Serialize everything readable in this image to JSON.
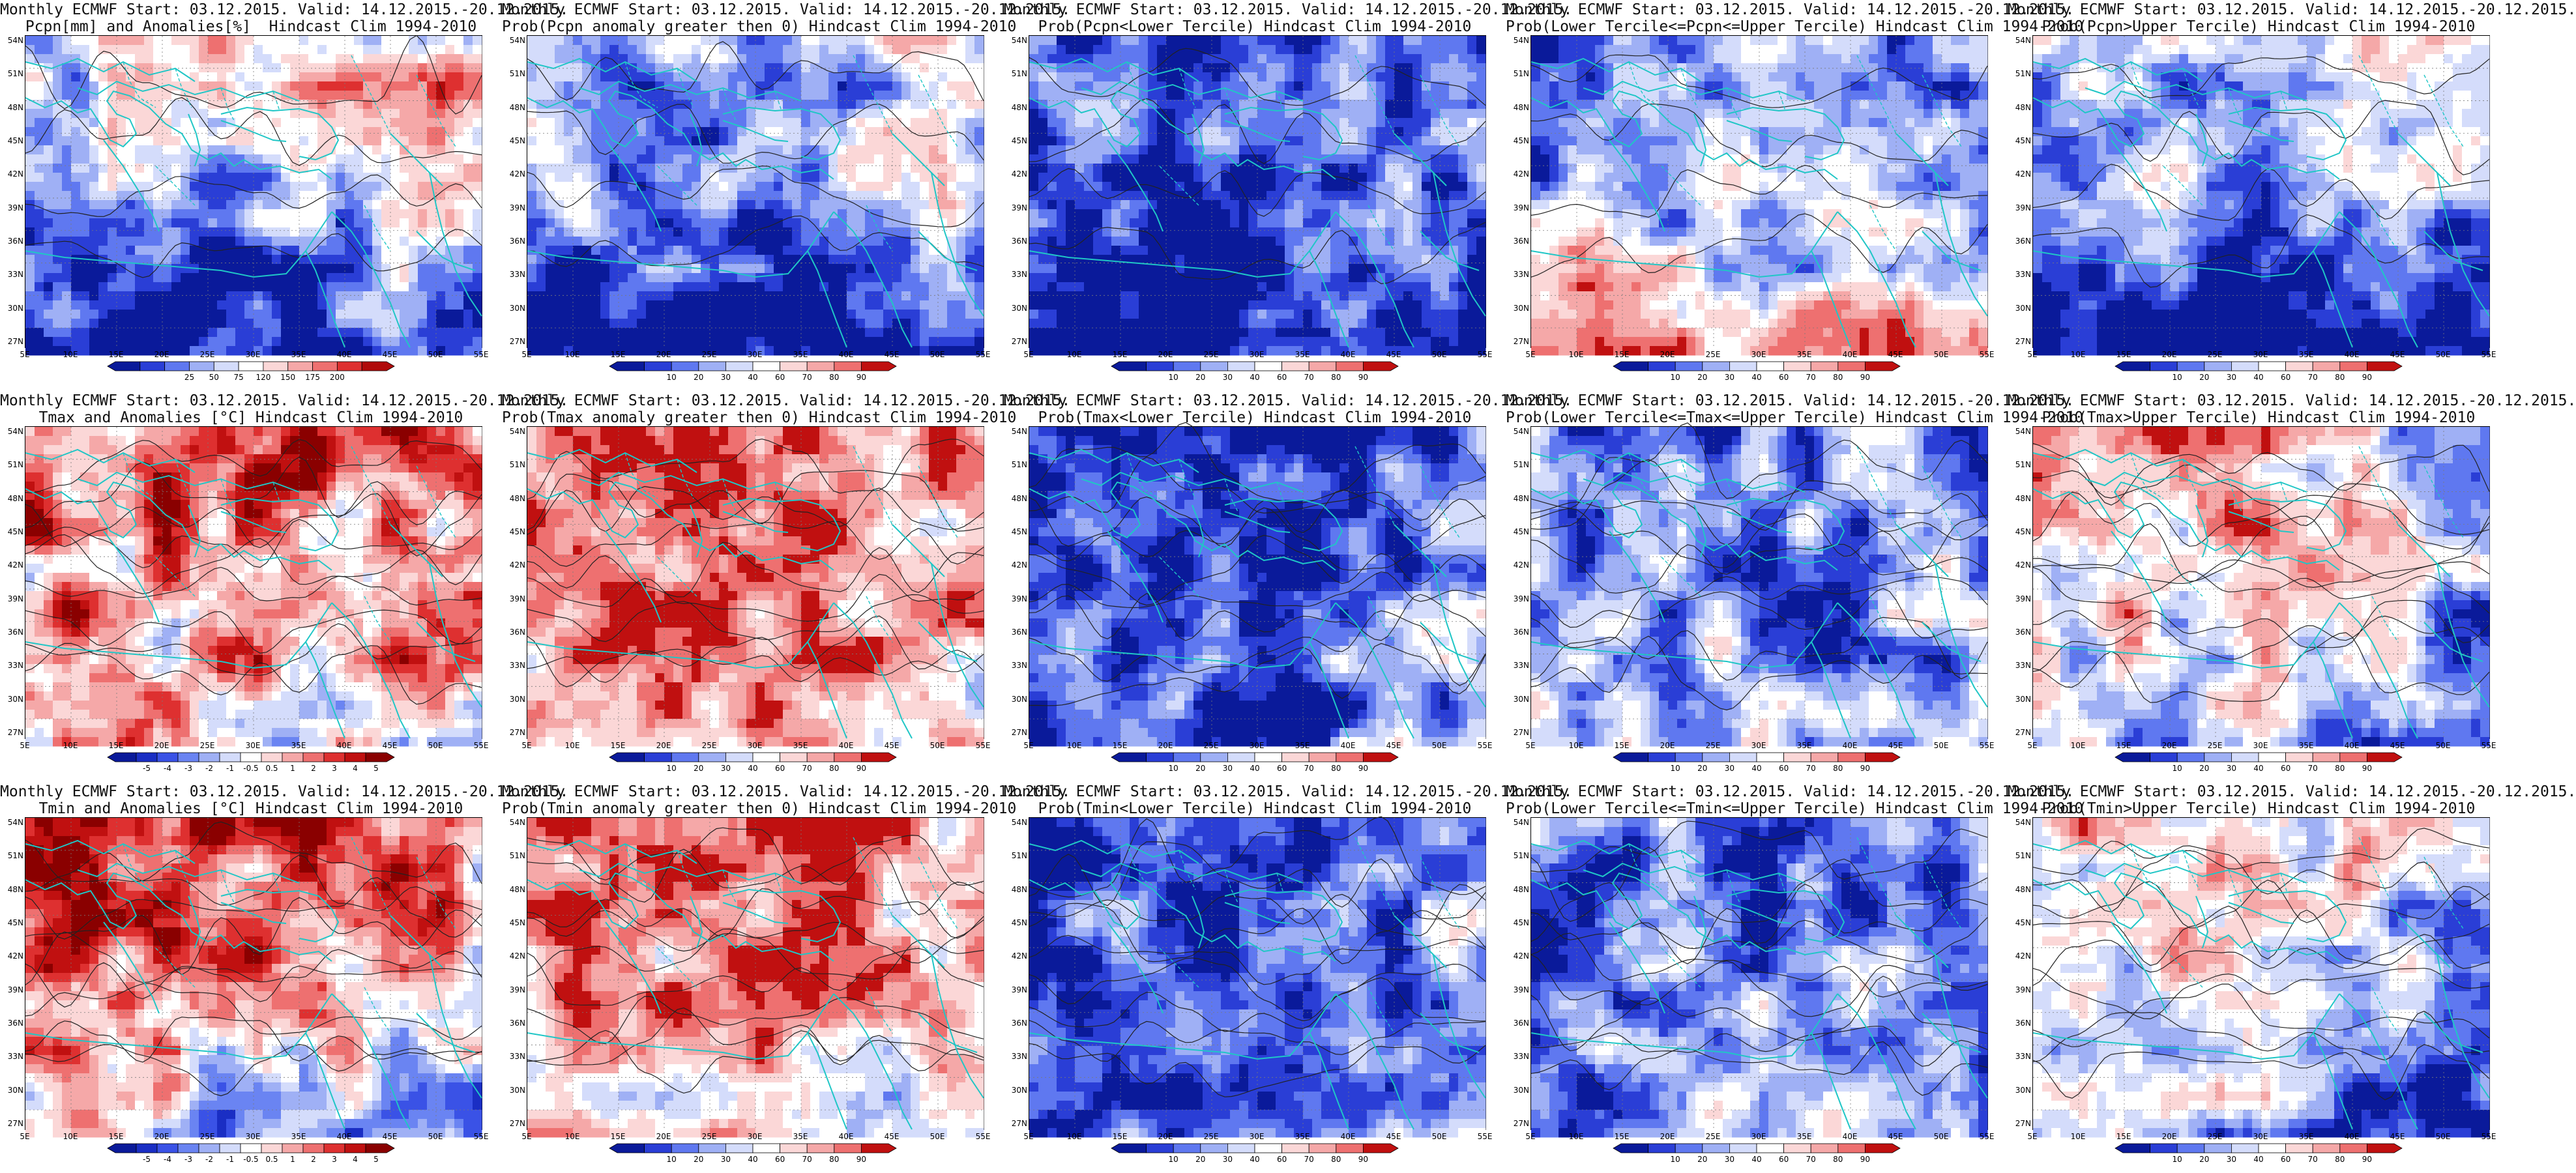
{
  "colorbars": {
    "pcpn_anom": {
      "labels": [
        "25",
        "50",
        "75",
        "120",
        "150",
        "175",
        "200"
      ],
      "colors": [
        "#0a1a9a",
        "#2a3ed6",
        "#5f78f0",
        "#9fb0f5",
        "#d4dcfb",
        "#ffffff",
        "#fbd7d7",
        "#f5a8a8",
        "#ee7070",
        "#de3030",
        "#b00a0a"
      ]
    },
    "temp_anom": {
      "labels": [
        "-5",
        "-4",
        "-3",
        "-2",
        "-1",
        "-0.5",
        "0.5",
        "1",
        "2",
        "3",
        "4",
        "5"
      ],
      "colors": [
        "#0a1a9a",
        "#1a2ec4",
        "#3a52e6",
        "#6a84f2",
        "#9fb0f5",
        "#d4dcfb",
        "#ffffff",
        "#fbd7d7",
        "#f5a8a8",
        "#ee7070",
        "#de3030",
        "#c01010",
        "#8a0000"
      ]
    },
    "prob": {
      "labels": [
        "10",
        "20",
        "30",
        "40",
        "60",
        "70",
        "80",
        "90"
      ],
      "colors": [
        "#0a1a9a",
        "#2a3ed6",
        "#5f78f0",
        "#9fb0f5",
        "#d4dcfb",
        "#ffffff",
        "#fbd7d7",
        "#f5a8a8",
        "#ee7070",
        "#c01010"
      ]
    }
  },
  "axes": {
    "lat_labels": [
      "54N",
      "51N",
      "48N",
      "45N",
      "42N",
      "39N",
      "36N",
      "33N",
      "30N",
      "27N"
    ],
    "lon_labels": [
      "5E",
      "10E",
      "15E",
      "20E",
      "25E",
      "30E",
      "35E",
      "40E",
      "45E",
      "50E",
      "55E"
    ]
  },
  "panels": [
    {
      "title1": "Monthly ECMWF Start: 03.12.2015. Valid: 14.12.2015.-20.12.2015.",
      "title2": "Pcpn[mm] and Anomalies[%]  Hindcast Clim 1994-2010",
      "colorbar": "pcpn_anom",
      "field": {
        "base": 0.35,
        "north": 0.15,
        "south": -0.35,
        "east": 0.2
      },
      "contours": "light"
    },
    {
      "title1": "Monthly ECMWF Start: 03.12.2015. Valid: 14.12.2015.-20.12.2015.",
      "title2": "Prob(Pcpn anomaly greater then 0) Hindcast Clim 1994-2010",
      "colorbar": "prob",
      "field": {
        "base": 0.3,
        "north": 0.12,
        "south": -0.35,
        "east": 0.15
      },
      "contours": "light"
    },
    {
      "title1": "Monthly ECMWF Start: 03.12.2015. Valid: 14.12.2015.-20.12.2015.",
      "title2": "Prob(Pcpn<Lower Tercile) Hindcast Clim 1994-2010",
      "colorbar": "prob",
      "field": {
        "base": 0.25,
        "north": -0.1,
        "south": -0.35,
        "east": 0.05
      },
      "contours": "light"
    },
    {
      "title1": "Monthly ECMWF Start: 03.12.2015. Valid: 14.12.2015.-20.12.2015.",
      "title2": "Prob(Lower Tercile<=Pcpn<=Upper Tercile) Hindcast Clim 1994-2010",
      "colorbar": "prob",
      "field": {
        "base": 0.35,
        "north": 0.0,
        "south": 0.4,
        "east": -0.05
      },
      "contours": "light"
    },
    {
      "title1": "Monthly ECMWF Start: 03.12.2015. Valid: 14.12.2015.-20.12.2015.",
      "title2": "Prob(Pcpn>Upper Tercile) Hindcast Clim 1994-2010",
      "colorbar": "prob",
      "field": {
        "base": 0.3,
        "north": 0.12,
        "south": -0.35,
        "east": 0.1
      },
      "contours": "light"
    },
    {
      "title1": "Monthly ECMWF Start: 03.12.2015. Valid: 14.12.2015.-20.12.2015.",
      "title2": "Tmax and Anomalies [°C] Hindcast Clim 1994-2010",
      "colorbar": "temp_anom",
      "field": {
        "base": 0.7,
        "north": 0.15,
        "south": -0.1,
        "east": -0.1
      },
      "contours": "dense"
    },
    {
      "title1": "Monthly ECMWF Start: 03.12.2015. Valid: 14.12.2015.-20.12.2015.",
      "title2": "Prob(Tmax anomaly greater then 0) Hindcast Clim 1994-2010",
      "colorbar": "prob",
      "field": {
        "base": 0.8,
        "north": 0.15,
        "south": -0.05,
        "east": -0.1
      },
      "contours": "dense"
    },
    {
      "title1": "Monthly ECMWF Start: 03.12.2015. Valid: 14.12.2015.-20.12.2015.",
      "title2": "Prob(Tmax<Lower Tercile) Hindcast Clim 1994-2010",
      "colorbar": "prob",
      "field": {
        "base": 0.12,
        "north": -0.05,
        "south": 0.05,
        "east": 0.25
      },
      "contours": "dense"
    },
    {
      "title1": "Monthly ECMWF Start: 03.12.2015. Valid: 14.12.2015.-20.12.2015.",
      "title2": "Prob(Lower Tercile<=Tmax<=Upper Tercile) Hindcast Clim 1994-2010",
      "colorbar": "prob",
      "field": {
        "base": 0.3,
        "north": -0.05,
        "south": 0.1,
        "east": 0.05
      },
      "contours": "dense"
    },
    {
      "title1": "Monthly ECMWF Start: 03.12.2015. Valid: 14.12.2015.-20.12.2015.",
      "title2": "Prob(Tmax>Upper Tercile) Hindcast Clim 1994-2010",
      "colorbar": "prob",
      "field": {
        "base": 0.62,
        "north": 0.1,
        "south": -0.15,
        "east": -0.3
      },
      "contours": "dense"
    },
    {
      "title1": "Monthly ECMWF Start: 03.12.2015. Valid: 14.12.2015.-20.12.2015.",
      "title2": "Tmin and Anomalies [°C] Hindcast Clim 1994-2010",
      "colorbar": "temp_anom",
      "field": {
        "base": 0.68,
        "north": 0.2,
        "south": -0.2,
        "east": -0.2
      },
      "contours": "dense"
    },
    {
      "title1": "Monthly ECMWF Start: 03.12.2015. Valid: 14.12.2015.-20.12.2015.",
      "title2": "Prob(Tmin anomaly greater then 0) Hindcast Clim 1994-2010",
      "colorbar": "prob",
      "field": {
        "base": 0.75,
        "north": 0.15,
        "south": -0.1,
        "east": -0.2
      },
      "contours": "dense"
    },
    {
      "title1": "Monthly ECMWF Start: 03.12.2015. Valid: 14.12.2015.-20.12.2015.",
      "title2": "Prob(Tmin<Lower Tercile) Hindcast Clim 1994-2010",
      "colorbar": "prob",
      "field": {
        "base": 0.15,
        "north": -0.05,
        "south": 0.05,
        "east": 0.3
      },
      "contours": "dense"
    },
    {
      "title1": "Monthly ECMWF Start: 03.12.2015. Valid: 14.12.2015.-20.12.2015.",
      "title2": "Prob(Lower Tercile<=Tmin<=Upper Tercile) Hindcast Clim 1994-2010",
      "colorbar": "prob",
      "field": {
        "base": 0.3,
        "north": -0.05,
        "south": 0.05,
        "east": 0.0
      },
      "contours": "dense"
    },
    {
      "title1": "Monthly ECMWF Start: 03.12.2015. Valid: 14.12.2015.-20.12.2015.",
      "title2": "Prob(Tmin>Upper Tercile) Hindcast Clim 1994-2010",
      "colorbar": "prob",
      "field": {
        "base": 0.55,
        "north": 0.15,
        "south": -0.15,
        "east": -0.35
      },
      "contours": "dense"
    }
  ]
}
